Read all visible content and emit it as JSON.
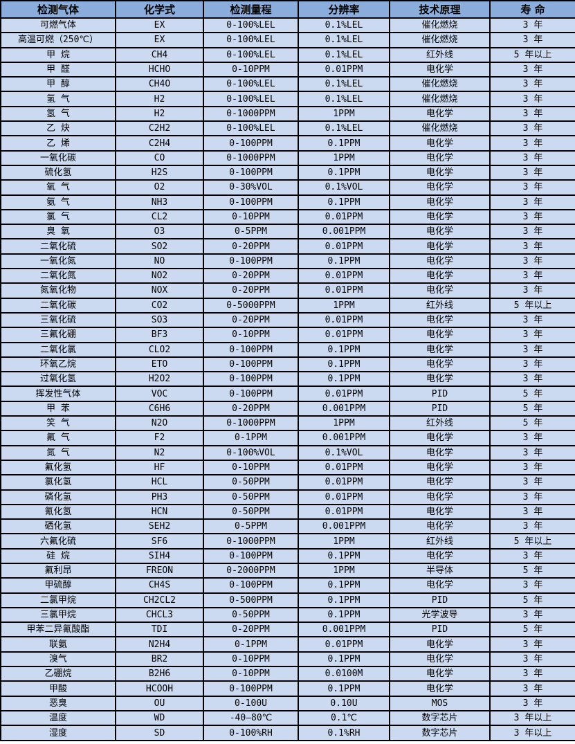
{
  "colors": {
    "header_bg": "#8BADDB",
    "row_bg": "#CBDAF1",
    "border": "#000000",
    "text": "#000000"
  },
  "table": {
    "headers": [
      "检测气体",
      "化学式",
      "检测量程",
      "分辨率",
      "技术原理",
      "寿 命"
    ],
    "rows": [
      [
        "可燃气体",
        "EX",
        "0-100%LEL",
        "0.1%LEL",
        "催化燃烧",
        "3 年"
      ],
      [
        "高温可燃（250℃）",
        "EX",
        "0-100%LEL",
        "0.1%LEL",
        "催化燃烧",
        "3 年"
      ],
      [
        "甲 烷",
        "CH4",
        "0-100%LEL",
        "0.1%LEL",
        "红外线",
        "5 年以上"
      ],
      [
        "甲 醛",
        "HCHO",
        "0-10PPM",
        "0.01PPM",
        "电化学",
        "3 年"
      ],
      [
        "甲 醇",
        "CH4O",
        "0-100%LEL",
        "0.1%LEL",
        "催化燃烧",
        "3 年"
      ],
      [
        "氢 气",
        "H2",
        "0-100%LEL",
        "0.1%LEL",
        "催化燃烧",
        "3 年"
      ],
      [
        "氢 气",
        "H2",
        "0-1000PPM",
        "1PPM",
        "电化学",
        "3 年"
      ],
      [
        "乙 炔",
        "C2H2",
        "0-100%LEL",
        "0.1%LEL",
        "催化燃烧",
        "3 年"
      ],
      [
        "乙 烯",
        "C2H4",
        "0-100PPM",
        "0.1PPM",
        "电化学",
        "3 年"
      ],
      [
        "一氧化碳",
        "CO",
        "0-1000PPM",
        "1PPM",
        "电化学",
        "3 年"
      ],
      [
        "硫化氢",
        "H2S",
        "0-100PPM",
        "0.1PPM",
        "电化学",
        "3 年"
      ],
      [
        "氧 气",
        "O2",
        "0-30%VOL",
        "0.1%VOL",
        "电化学",
        "3 年"
      ],
      [
        "氨 气",
        "NH3",
        "0-100PPM",
        "0.1PPM",
        "电化学",
        "3 年"
      ],
      [
        "氯 气",
        "CL2",
        "0-10PPM",
        "0.01PPM",
        "电化学",
        "3 年"
      ],
      [
        "臭 氧",
        "O3",
        "0-5PPM",
        "0.001PPM",
        "电化学",
        "3 年"
      ],
      [
        "二氧化硫",
        "SO2",
        "0-20PPM",
        "0.01PPM",
        "电化学",
        "3 年"
      ],
      [
        "一氧化氮",
        "NO",
        "0-100PPM",
        "0.1PPM",
        "电化学",
        "3 年"
      ],
      [
        "二氧化氮",
        "NO2",
        "0-20PPM",
        "0.01PPM",
        "电化学",
        "3 年"
      ],
      [
        "氮氧化物",
        "NOX",
        "0-20PPM",
        "0.01PPM",
        "电化学",
        "3 年"
      ],
      [
        "二氧化碳",
        "CO2",
        "0-5000PPM",
        "1PPM",
        "红外线",
        "5 年以上"
      ],
      [
        "三氧化硫",
        "SO3",
        "0-20PPM",
        "0.01PPM",
        "电化学",
        "3 年"
      ],
      [
        "三氟化硼",
        "BF3",
        "0-10PPM",
        "0.01PPM",
        "电化学",
        "3 年"
      ],
      [
        "二氧化氯",
        "CLO2",
        "0-100PPM",
        "0.1PPM",
        "电化学",
        "3 年"
      ],
      [
        "环氧乙烷",
        "ETO",
        "0-100PPM",
        "0.1PPM",
        "电化学",
        "3 年"
      ],
      [
        "过氧化氢",
        "H2O2",
        "0-100PPM",
        "0.1PPM",
        "电化学",
        "3 年"
      ],
      [
        "挥发性气体",
        "VOC",
        "0-100PPM",
        "0.01PPM",
        "PID",
        "5 年"
      ],
      [
        "甲 苯",
        "C6H6",
        "0-20PPM",
        "0.001PPM",
        "PID",
        "5 年"
      ],
      [
        "笑 气",
        "N2O",
        "0-1000PPM",
        "1PPM",
        "红外线",
        "5 年"
      ],
      [
        "氟 气",
        "F2",
        "0-1PPM",
        "0.001PPM",
        "电化学",
        "3 年"
      ],
      [
        "氮 气",
        "N2",
        "0-100%VOL",
        "0.1%VOL",
        "电化学",
        "3 年"
      ],
      [
        "氟化氢",
        "HF",
        "0-10PPM",
        "0.01PPM",
        "电化学",
        "3 年"
      ],
      [
        "氯化氢",
        "HCL",
        "0-50PPM",
        "0.01PPM",
        "电化学",
        "3 年"
      ],
      [
        "磷化氢",
        "PH3",
        "0-50PPM",
        "0.01PPM",
        "电化学",
        "3 年"
      ],
      [
        "氰化氢",
        "HCN",
        "0-50PPM",
        "0.01PPM",
        "电化学",
        "3 年"
      ],
      [
        "硒化氢",
        "SEH2",
        "0-5PPM",
        "0.001PPM",
        "电化学",
        "3 年"
      ],
      [
        "六氟化硫",
        "SF6",
        "0-1000PPM",
        "1PPM",
        "红外线",
        "5 年以上"
      ],
      [
        "硅 烷",
        "SIH4",
        "0-100PPM",
        "0.1PPM",
        "电化学",
        "3 年"
      ],
      [
        "氟利昂",
        "FREON",
        "0-2000PPM",
        "1PPM",
        "半导体",
        "5 年"
      ],
      [
        "甲硫醇",
        "CH4S",
        "0-100PPM",
        "0.1PPM",
        "电化学",
        "3 年"
      ],
      [
        "二氯甲烷",
        "CH2CL2",
        "0-500PPM",
        "0.1PPM",
        "PID",
        "5 年"
      ],
      [
        "三氯甲烷",
        "CHCL3",
        "0-50PPM",
        "0.1PPM",
        "光学波导",
        "3 年"
      ],
      [
        "甲苯二异氰酸酯",
        "TDI",
        "0-20PPM",
        "0.001PPM",
        "PID",
        "5 年"
      ],
      [
        "联氨",
        "N2H4",
        "0-1PPM",
        "0.01PPM",
        "电化学",
        "3 年"
      ],
      [
        "溴气",
        "BR2",
        "0-10PPM",
        "0.1PPM",
        "电化学",
        "3 年"
      ],
      [
        "乙硼烷",
        "B2H6",
        "0-10PPM",
        "0.0100M",
        "电化学",
        "3 年"
      ],
      [
        "甲酸",
        "HCOOH",
        "0-100PPM",
        "0.1PPM",
        "电化学",
        "3 年"
      ],
      [
        "恶臭",
        "OU",
        "0-100U",
        "0.10U",
        "MOS",
        "3 年"
      ],
      [
        "温度",
        "WD",
        "-40—80℃",
        "0.1℃",
        "数字芯片",
        "3 年以上"
      ],
      [
        "湿度",
        "SD",
        "0-100%RH",
        "0.1%RH",
        "数字芯片",
        "3 年以上"
      ]
    ]
  }
}
